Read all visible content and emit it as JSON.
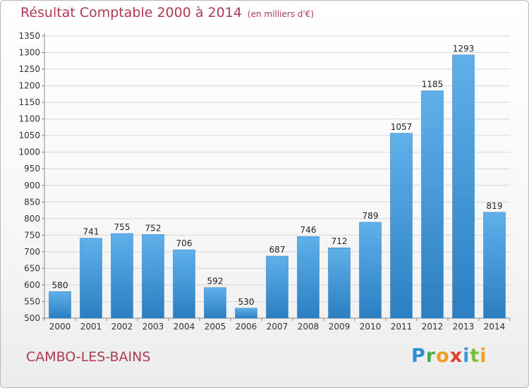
{
  "header": {
    "title": "Résultat Comptable 2000 à 2014",
    "unit": "(en milliers d'€)"
  },
  "footer": {
    "commune": "CAMBO-LES-BAINS",
    "logo": "Proxiti"
  },
  "colors": {
    "title": "#b03a54",
    "bar_light": "#5fb0ea",
    "bar_dark": "#2b7fc2"
  },
  "chart_data": {
    "type": "bar",
    "title": "Résultat Comptable 2000 à 2014",
    "subtitle": "(en milliers d'€)",
    "categories": [
      "2000",
      "2001",
      "2002",
      "2003",
      "2004",
      "2005",
      "2006",
      "2007",
      "2008",
      "2009",
      "2010",
      "2011",
      "2012",
      "2013",
      "2014"
    ],
    "values": [
      580,
      741,
      755,
      752,
      706,
      592,
      530,
      687,
      746,
      712,
      789,
      1057,
      1185,
      1293,
      819
    ],
    "ylim": [
      500,
      1350
    ],
    "ytick_step": 50,
    "grid": true,
    "data_labels": true
  }
}
